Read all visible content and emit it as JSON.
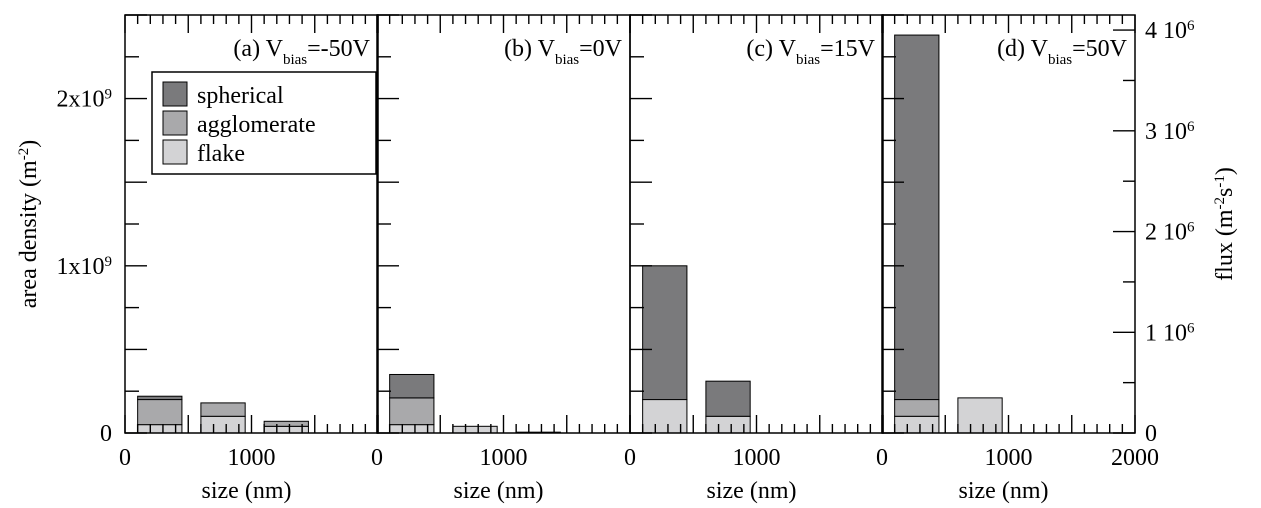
{
  "colors": {
    "spherical": "#7a7a7c",
    "agglomerate": "#a9a9ab",
    "flake": "#d3d3d5",
    "axis": "#000000",
    "background": "#ffffff"
  },
  "chart_data": {
    "type": "bar",
    "stacked": true,
    "left_ylabel": "area density (m",
    "left_ylabel_sup": "-2",
    "left_ylabel_end": ")",
    "right_ylabel": "flux (m",
    "right_ylabel_sup": "-2",
    "right_ylabel_mid": "s",
    "right_ylabel_sup2": "-1",
    "right_ylabel_end": ")",
    "ylim": [
      0,
      2500000000
    ],
    "left_yticks": [
      {
        "value": 0,
        "label": "0"
      },
      {
        "value": 1000000000,
        "label": "1x10",
        "sup": "9"
      },
      {
        "value": 2000000000,
        "label": "2x10",
        "sup": "9"
      }
    ],
    "right_ylim": [
      0,
      4150000
    ],
    "right_yticks": [
      {
        "value": 0,
        "label": "0",
        "sup": ""
      },
      {
        "value": 1000000,
        "label": "1 10",
        "sup": "6"
      },
      {
        "value": 2000000,
        "label": "2 10",
        "sup": "6"
      },
      {
        "value": 3000000,
        "label": "3 10",
        "sup": "6"
      },
      {
        "value": 4000000,
        "label": "4 10",
        "sup": "6"
      }
    ],
    "legend": {
      "placement": "top-left",
      "entries": [
        {
          "name": "spherical",
          "color_key": "spherical"
        },
        {
          "name": "agglomerate",
          "color_key": "agglomerate"
        },
        {
          "name": "flake",
          "color_key": "flake"
        }
      ]
    },
    "bins": [
      {
        "x0": 100,
        "x1": 450
      },
      {
        "x0": 600,
        "x1": 950
      },
      {
        "x0": 1100,
        "x1": 1450
      }
    ],
    "panels": [
      {
        "id": "a",
        "prefix": "(a) V",
        "sub": "bias",
        "suffix": "=-50V",
        "xlim": [
          0,
          2000
        ],
        "xticks": [
          {
            "value": 0,
            "label": "0"
          },
          {
            "value": 1000,
            "label": "1000"
          }
        ],
        "xlabel": "size (nm)",
        "bars": [
          {
            "flake": 50000000,
            "agglomerate": 150000000,
            "spherical": 20000000
          },
          {
            "flake": 100000000,
            "agglomerate": 80000000,
            "spherical": 0
          },
          {
            "flake": 40000000,
            "agglomerate": 30000000,
            "spherical": 0
          }
        ]
      },
      {
        "id": "b",
        "prefix": "(b) V",
        "sub": "bias",
        "suffix": "=0V",
        "xlim": [
          0,
          2000
        ],
        "xticks": [
          {
            "value": 0,
            "label": "0"
          },
          {
            "value": 1000,
            "label": "1000"
          }
        ],
        "xlabel": "size (nm)",
        "bars": [
          {
            "flake": 50000000,
            "agglomerate": 160000000,
            "spherical": 140000000
          },
          {
            "flake": 40000000,
            "agglomerate": 0,
            "spherical": 0
          },
          {
            "flake": 5000000,
            "agglomerate": 0,
            "spherical": 0
          }
        ]
      },
      {
        "id": "c",
        "prefix": "(c) V",
        "sub": "bias",
        "suffix": "=15V",
        "xlim": [
          0,
          2000
        ],
        "xticks": [
          {
            "value": 0,
            "label": "0"
          },
          {
            "value": 1000,
            "label": "1000"
          }
        ],
        "xlabel": "size (nm)",
        "bars": [
          {
            "flake": 200000000,
            "agglomerate": 0,
            "spherical": 800000000
          },
          {
            "flake": 100000000,
            "agglomerate": 0,
            "spherical": 210000000
          },
          {
            "flake": 0,
            "agglomerate": 0,
            "spherical": 0
          }
        ]
      },
      {
        "id": "d",
        "prefix": "(d) V",
        "sub": "bias",
        "suffix": "=50V",
        "xlim": [
          0,
          2000
        ],
        "xticks": [
          {
            "value": 0,
            "label": "0"
          },
          {
            "value": 1000,
            "label": "1000"
          },
          {
            "value": 2000,
            "label": "2000"
          }
        ],
        "xlabel": "size (nm)",
        "bars": [
          {
            "flake": 100000000,
            "agglomerate": 100000000,
            "spherical": 2180000000
          },
          {
            "flake": 210000000,
            "agglomerate": 0,
            "spherical": 0
          },
          {
            "flake": 0,
            "agglomerate": 0,
            "spherical": 0
          }
        ]
      }
    ]
  }
}
